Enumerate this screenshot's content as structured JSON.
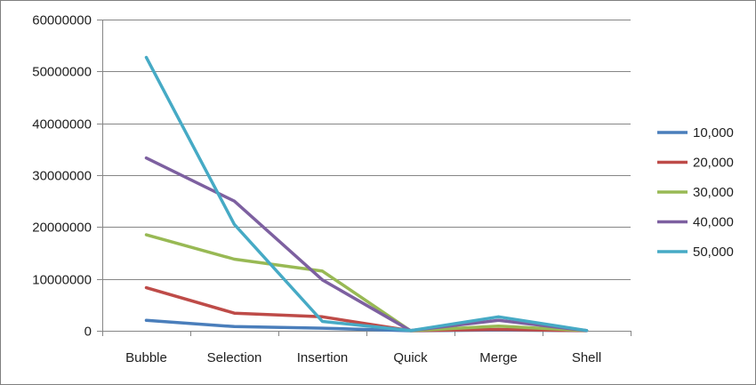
{
  "chart_data": {
    "type": "line",
    "title": "",
    "xlabel": "",
    "ylabel": "",
    "categories": [
      "Bubble",
      "Selection",
      "Insertion",
      "Quick",
      "Merge",
      "Shell"
    ],
    "ylim": [
      0,
      60000000
    ],
    "yticks": [
      0,
      10000000,
      20000000,
      30000000,
      40000000,
      50000000,
      60000000
    ],
    "ytick_labels": [
      "0",
      "10000000",
      "20000000",
      "30000000",
      "40000000",
      "50000000",
      "60000000"
    ],
    "grid": true,
    "legend_position": "right",
    "series": [
      {
        "name": "10,000",
        "color": "#4a7ebb",
        "values": [
          2000000,
          800000,
          500000,
          5000,
          150000,
          10000
        ]
      },
      {
        "name": "20,000",
        "color": "#be4b48",
        "values": [
          8300000,
          3400000,
          2700000,
          12000,
          250000,
          20000
        ]
      },
      {
        "name": "30,000",
        "color": "#98b954",
        "values": [
          18500000,
          13800000,
          11500000,
          20000,
          900000,
          30000
        ]
      },
      {
        "name": "40,000",
        "color": "#7d60a0",
        "values": [
          33300000,
          25000000,
          9800000,
          30000,
          2000000,
          40000
        ]
      },
      {
        "name": "50,000",
        "color": "#46aac5",
        "values": [
          52700000,
          20500000,
          1800000,
          40000,
          2700000,
          50000
        ]
      }
    ]
  }
}
